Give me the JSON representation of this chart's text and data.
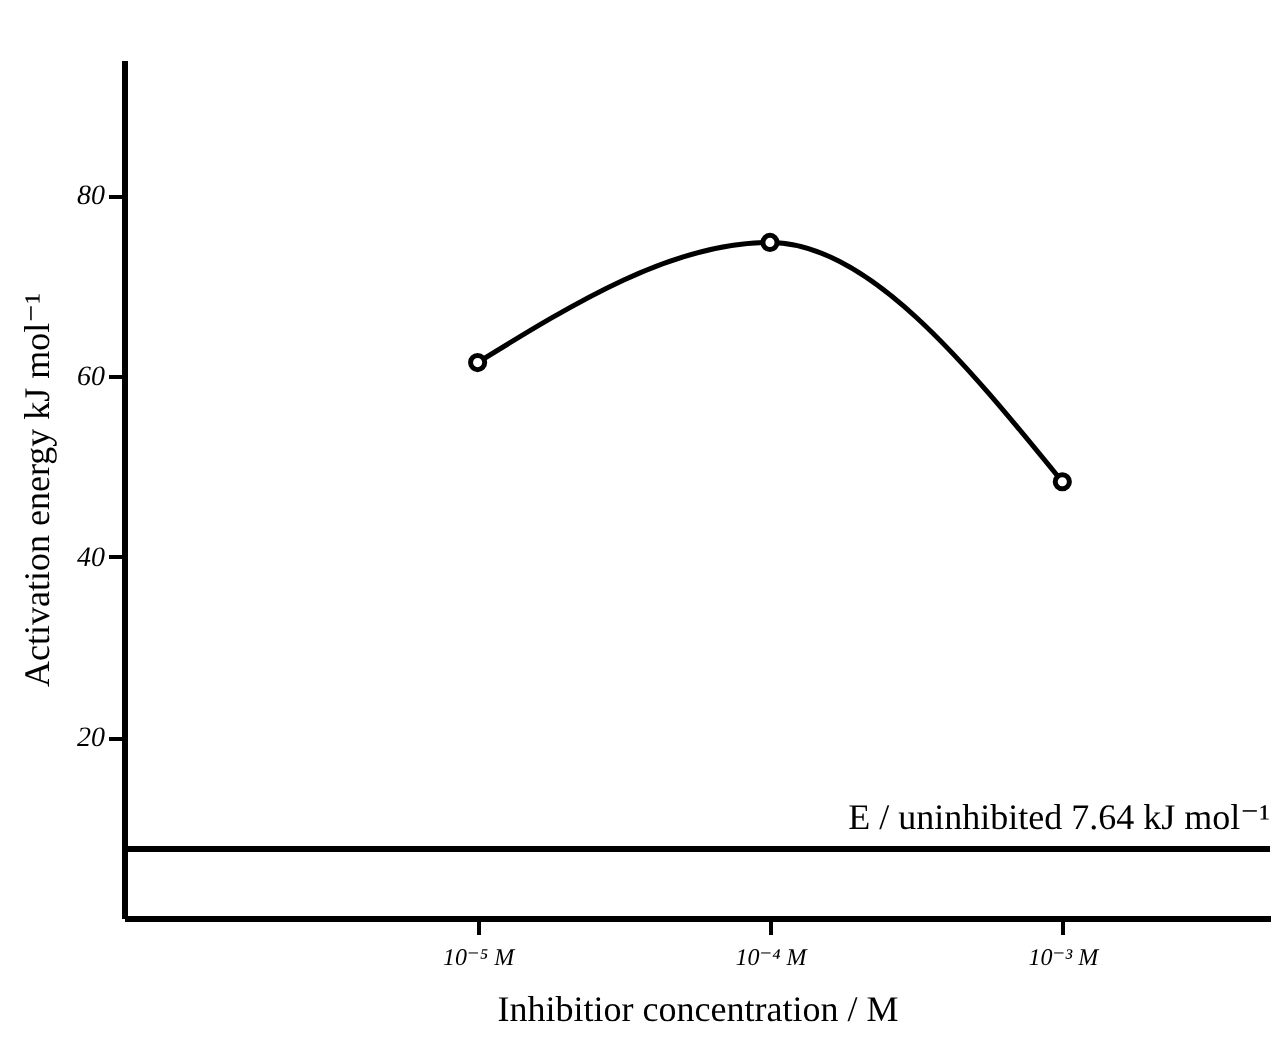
{
  "chart_data": {
    "type": "line",
    "xlabel": "Inhibitior concentration / M",
    "ylabel": "Activation energy kJ mol⁻¹",
    "categories": [
      "10⁻⁵ M",
      "10⁻⁴ M",
      "10⁻³ M"
    ],
    "series": [
      {
        "color": "#000000",
        "values": [
          61.5,
          74.8,
          48.3
        ]
      }
    ],
    "ylim": [
      0,
      95
    ],
    "yticks": [
      20,
      40,
      60,
      80
    ],
    "ref_lines": [
      {
        "axis": "y",
        "value": 7.64,
        "label": "E / uninhibited 7.64 kJ mol⁻¹",
        "color": "#000000"
      }
    ],
    "marker": "circle",
    "line_style": "solid",
    "grid": false,
    "legend": false
  }
}
